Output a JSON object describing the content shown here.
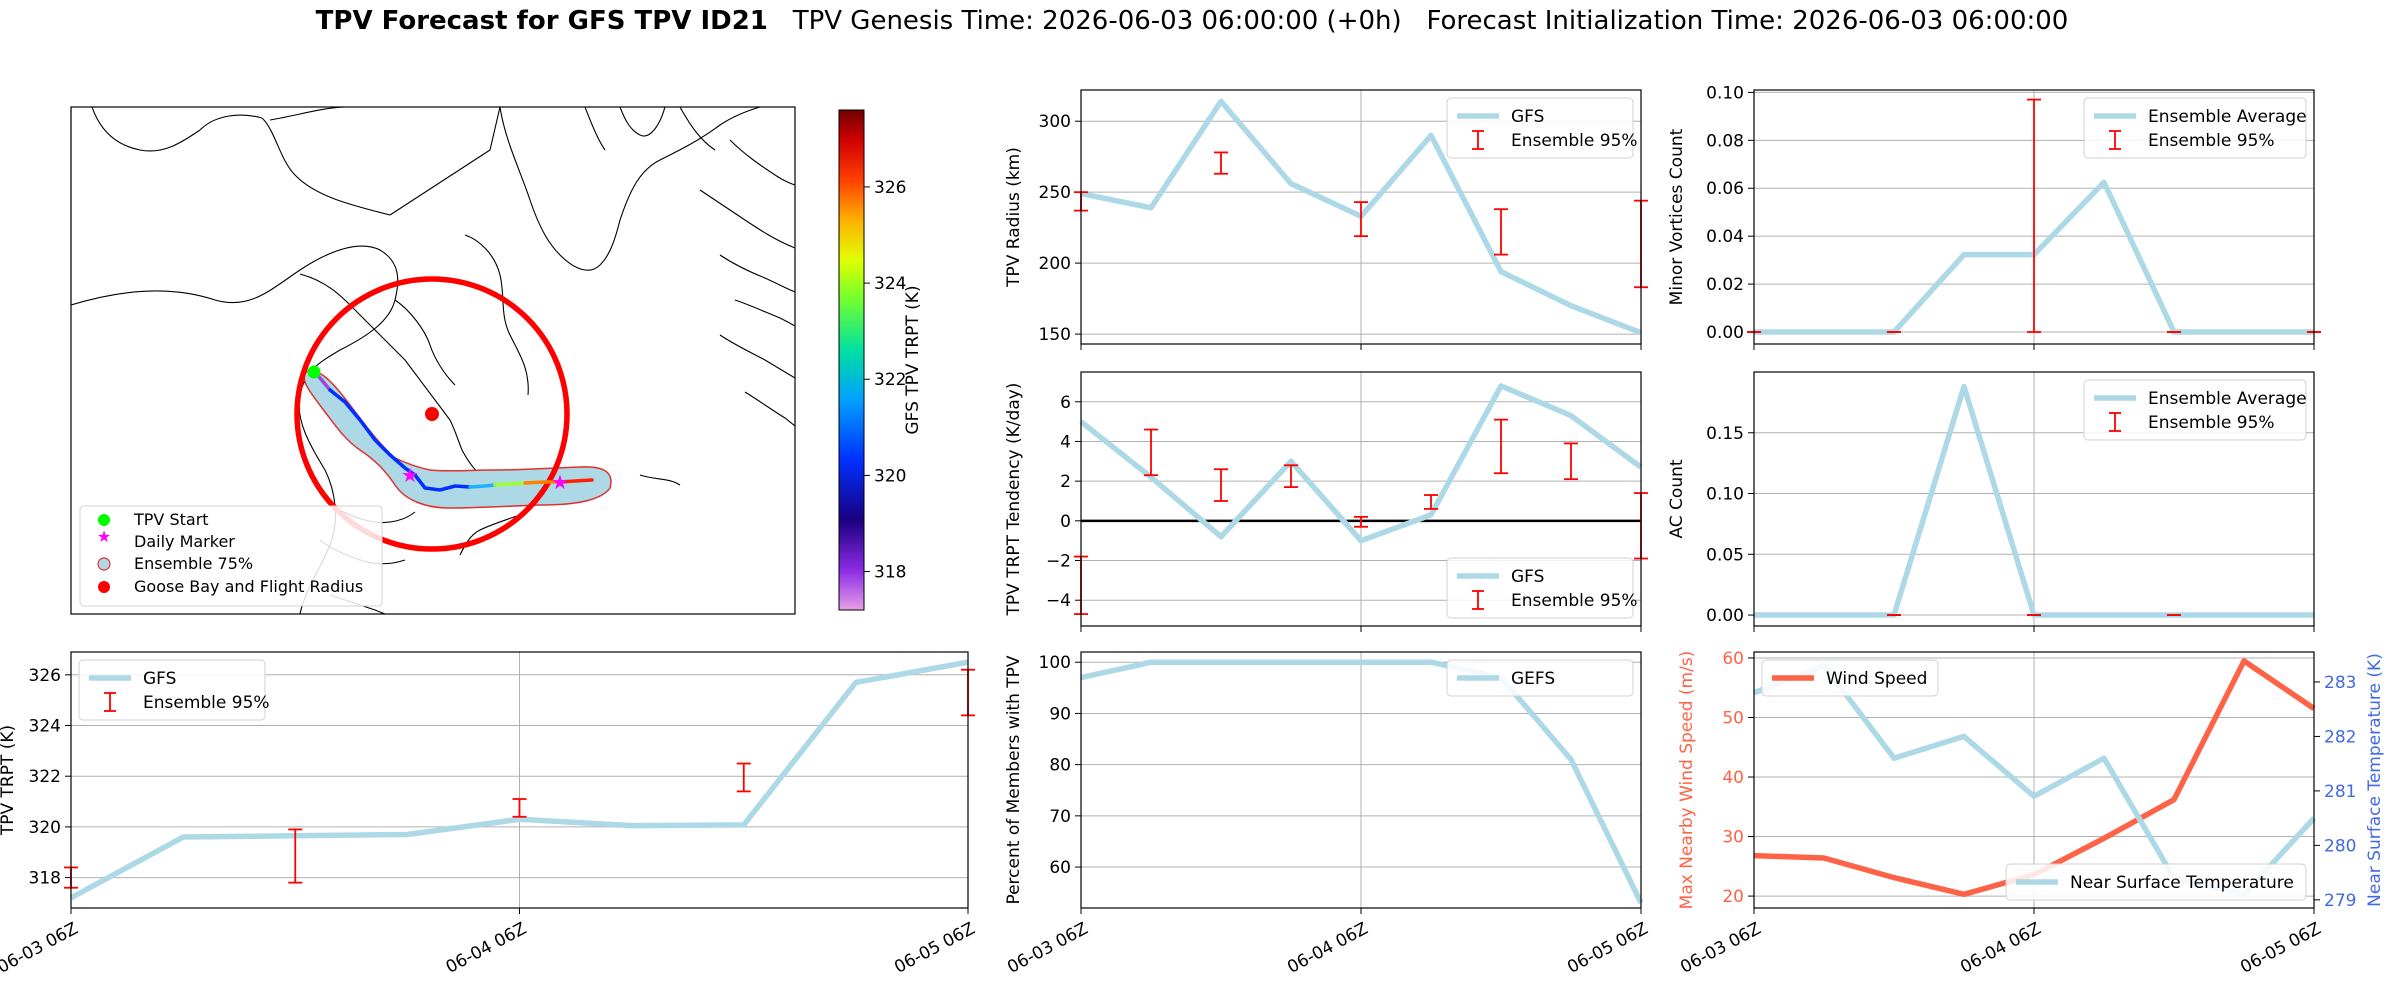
{
  "header": {
    "title_bold": "TPV Forecast for GFS TPV ID21",
    "genesis": "TPV Genesis Time: 2026-06-03 06:00:00 (+0h)",
    "init": "Forecast Initialization Time: 2026-06-03 06:00:00"
  },
  "colors": {
    "gfs": "#add8e6",
    "ensemble": "#ff0000",
    "wind": "#ff6347",
    "temp_axis": "#4169e1",
    "zero_line": "#000000"
  },
  "chart_data": [
    {
      "id": "map",
      "type": "map",
      "colorbar": {
        "label": "GFS TPV TRPT (K)",
        "ticks": [
          318,
          320,
          322,
          324,
          326
        ],
        "range": [
          317.2,
          327.6
        ]
      },
      "legend": [
        {
          "label": "TPV Start",
          "marker": "circle",
          "color": "#00ff00"
        },
        {
          "label": "Daily Marker",
          "marker": "star",
          "color": "#ff00ff"
        },
        {
          "label": "Ensemble 75%",
          "marker": "circle-outline",
          "color": "#add8e6"
        },
        {
          "label": "Goose Bay and Flight Radius",
          "marker": "circle",
          "color": "#ff0000"
        }
      ]
    },
    {
      "id": "radius",
      "type": "line",
      "ylabel": "TPV Radius (km)",
      "ylim": [
        143,
        322
      ],
      "yticks": [
        150,
        200,
        250,
        300
      ],
      "x": [
        0,
        6,
        12,
        18,
        24,
        30,
        36,
        42,
        48
      ],
      "series": [
        {
          "name": "GFS",
          "values": [
            249,
            239,
            314,
            256,
            233,
            290,
            194,
            170,
            151
          ]
        }
      ],
      "ensemble": {
        "name": "Ensemble 95%",
        "x": [
          0,
          12,
          24,
          36,
          48
        ],
        "low": [
          237,
          263,
          219,
          206,
          183
        ],
        "high": [
          250,
          278,
          243,
          238,
          244
        ]
      },
      "legend": "top-right"
    },
    {
      "id": "minor",
      "type": "line",
      "ylabel": "Minor Vortices Count",
      "ylim": [
        -0.005,
        0.101
      ],
      "yticks": [
        "0.00",
        "0.02",
        "0.04",
        "0.06",
        "0.08",
        "0.10"
      ],
      "ytick_values": [
        0,
        0.02,
        0.04,
        0.06,
        0.08,
        0.1
      ],
      "x": [
        0,
        6,
        12,
        18,
        24,
        30,
        36,
        42,
        48
      ],
      "series": [
        {
          "name": "Ensemble Average",
          "values": [
            0,
            0,
            0,
            0.0323,
            0.0323,
            0.0625,
            0,
            0,
            0
          ]
        }
      ],
      "ensemble": {
        "name": "Ensemble 95%",
        "x": [
          0,
          12,
          24,
          36,
          48
        ],
        "low": [
          0,
          0,
          0,
          0,
          0
        ],
        "high": [
          0,
          0,
          0.097,
          0,
          0
        ]
      },
      "legend": "top-right"
    },
    {
      "id": "tendency",
      "type": "line",
      "ylabel": "TPV TRPT Tendency (K/day)",
      "ylim": [
        -5.3,
        7.5
      ],
      "yticks": [
        "−4",
        "−2",
        "0",
        "2",
        "4",
        "6"
      ],
      "ytick_values": [
        -4,
        -2,
        0,
        2,
        4,
        6
      ],
      "x": [
        0,
        6,
        12,
        18,
        24,
        30,
        36,
        42,
        48
      ],
      "series": [
        {
          "name": "GFS",
          "values": [
            5.0,
            2.2,
            -0.8,
            3.0,
            -1.0,
            0.3,
            6.8,
            5.3,
            2.7
          ]
        }
      ],
      "ensemble": {
        "name": "Ensemble 95%",
        "x": [
          0,
          6,
          12,
          18,
          24,
          30,
          36,
          42,
          48
        ],
        "low": [
          -4.7,
          2.3,
          1.0,
          1.7,
          -0.3,
          0.6,
          2.4,
          2.1,
          -1.9
        ],
        "high": [
          -1.8,
          4.6,
          2.6,
          2.8,
          0.2,
          1.3,
          5.1,
          3.9,
          1.4
        ]
      },
      "legend": "bottom-right"
    },
    {
      "id": "ac",
      "type": "line",
      "ylabel": "AC Count",
      "ylim": [
        -0.009,
        0.2
      ],
      "yticks": [
        "0.00",
        "0.05",
        "0.10",
        "0.15"
      ],
      "ytick_values": [
        0,
        0.05,
        0.1,
        0.15
      ],
      "x": [
        0,
        6,
        12,
        18,
        24,
        30,
        36,
        42,
        48
      ],
      "series": [
        {
          "name": "Ensemble Average",
          "values": [
            0,
            0,
            0,
            0.188,
            0,
            0,
            0,
            0,
            0
          ]
        }
      ],
      "ensemble": {
        "name": "Ensemble 95%",
        "x": [
          12,
          24,
          36
        ],
        "low": [
          0,
          0,
          0
        ],
        "high": [
          0,
          0,
          0
        ]
      },
      "legend": "top-right"
    },
    {
      "id": "trpt",
      "type": "line",
      "ylabel": "TPV TRPT (K)",
      "ylim": [
        316.8,
        326.9
      ],
      "yticks": [
        318,
        320,
        322,
        324,
        326
      ],
      "x": [
        0,
        6,
        12,
        18,
        24,
        30,
        36,
        42,
        48
      ],
      "series": [
        {
          "name": "GFS",
          "values": [
            317.2,
            319.6,
            319.65,
            319.7,
            320.3,
            320.05,
            320.08,
            325.7,
            326.5
          ]
        }
      ],
      "ensemble": {
        "name": "Ensemble 95%",
        "x": [
          0,
          12,
          24,
          36,
          48
        ],
        "low": [
          317.6,
          317.8,
          320.4,
          321.4,
          324.4
        ],
        "high": [
          318.4,
          319.9,
          321.1,
          322.5,
          326.2
        ]
      },
      "legend": "top-left",
      "xticks": [
        "06-03 06Z",
        "06-04 06Z",
        "06-05 06Z"
      ]
    },
    {
      "id": "members",
      "type": "line",
      "ylabel": "Percent of Members with TPV",
      "ylim": [
        52,
        102
      ],
      "yticks": [
        60,
        70,
        80,
        90,
        100
      ],
      "x": [
        0,
        6,
        12,
        18,
        24,
        30,
        36,
        42,
        48
      ],
      "series": [
        {
          "name": "GEFS",
          "values": [
            97,
            100,
            100,
            100,
            100,
            100,
            97,
            81,
            53
          ]
        }
      ],
      "legend": "top-right",
      "xticks": [
        "06-03 06Z",
        "06-04 06Z",
        "06-05 06Z"
      ]
    },
    {
      "id": "wind_temp",
      "type": "line",
      "ylabel": "Max Nearby Wind Speed (m/s)",
      "ylim": [
        18,
        61
      ],
      "yticks": [
        20,
        30,
        40,
        50,
        60
      ],
      "ylabel2": "Near Surface Temperature (K)",
      "ylim2": [
        278.85,
        283.55
      ],
      "yticks2": [
        279,
        280,
        281,
        282,
        283
      ],
      "x": [
        0,
        6,
        12,
        18,
        24,
        30,
        36,
        42,
        48
      ],
      "series": [
        {
          "name": "Wind Speed",
          "axis": "left",
          "values": [
            26.8,
            26.4,
            23.1,
            20.3,
            23.6,
            29.7,
            36.2,
            59.5,
            51.5
          ]
        },
        {
          "name": "Near Surface Temperature",
          "axis": "right",
          "values": [
            282.8,
            283.3,
            281.6,
            282.0,
            280.9,
            281.6,
            279.4,
            279.1,
            280.5
          ]
        }
      ],
      "legend_left": "top-left",
      "legend_right": "bottom-right",
      "xticks": [
        "06-03 06Z",
        "06-04 06Z",
        "06-05 06Z"
      ]
    }
  ]
}
